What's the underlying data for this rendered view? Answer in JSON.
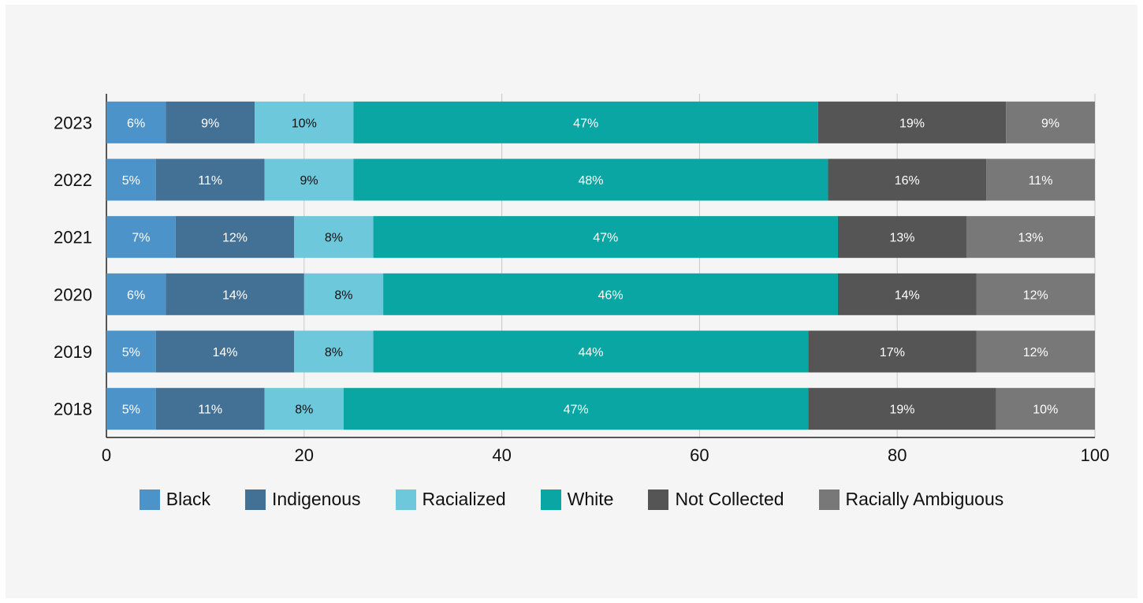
{
  "chart_data": {
    "type": "bar",
    "orientation": "horizontal",
    "stacked": true,
    "categories": [
      "2023",
      "2022",
      "2021",
      "2020",
      "2019",
      "2018"
    ],
    "series": [
      {
        "name": "Black",
        "color": "#4b93c9",
        "values": [
          6,
          5,
          7,
          6,
          5,
          5
        ],
        "labels": [
          "6%",
          "5%",
          "7%",
          "6%",
          "5%",
          "5%"
        ],
        "label_color": "#ffffff"
      },
      {
        "name": "Indigenous",
        "color": "#437196",
        "values": [
          9,
          11,
          12,
          14,
          14,
          11
        ],
        "labels": [
          "9%",
          "11%",
          "12%",
          "14%",
          "14%",
          "11%"
        ],
        "label_color": "#ffffff"
      },
      {
        "name": "Racialized",
        "color": "#6dc8db",
        "values": [
          10,
          9,
          8,
          8,
          8,
          8
        ],
        "labels": [
          "10%",
          "9%",
          "8%",
          "8%",
          "8%",
          "8%"
        ],
        "label_color": "#111111"
      },
      {
        "name": "White",
        "color": "#09a6a3",
        "values": [
          47,
          48,
          47,
          46,
          44,
          47
        ],
        "labels": [
          "47%",
          "48%",
          "47%",
          "46%",
          "44%",
          "47%"
        ],
        "label_color": "#ffffff"
      },
      {
        "name": "Not Collected",
        "color": "#555555",
        "values": [
          19,
          16,
          13,
          14,
          17,
          19
        ],
        "labels": [
          "19%",
          "16%",
          "13%",
          "14%",
          "17%",
          "19%"
        ],
        "label_color": "#ffffff"
      },
      {
        "name": "Racially Ambiguous",
        "color": "#787878",
        "values": [
          9,
          11,
          13,
          12,
          12,
          10
        ],
        "labels": [
          "9%",
          "11%",
          "13%",
          "12%",
          "12%",
          "10%"
        ],
        "label_color": "#ffffff"
      }
    ],
    "xlim": [
      0,
      100
    ],
    "xticks": [
      "0",
      "20",
      "40",
      "60",
      "80",
      "100"
    ],
    "grid": "vertical",
    "legend_position": "bottom",
    "title": "",
    "xlabel": "",
    "ylabel": ""
  }
}
